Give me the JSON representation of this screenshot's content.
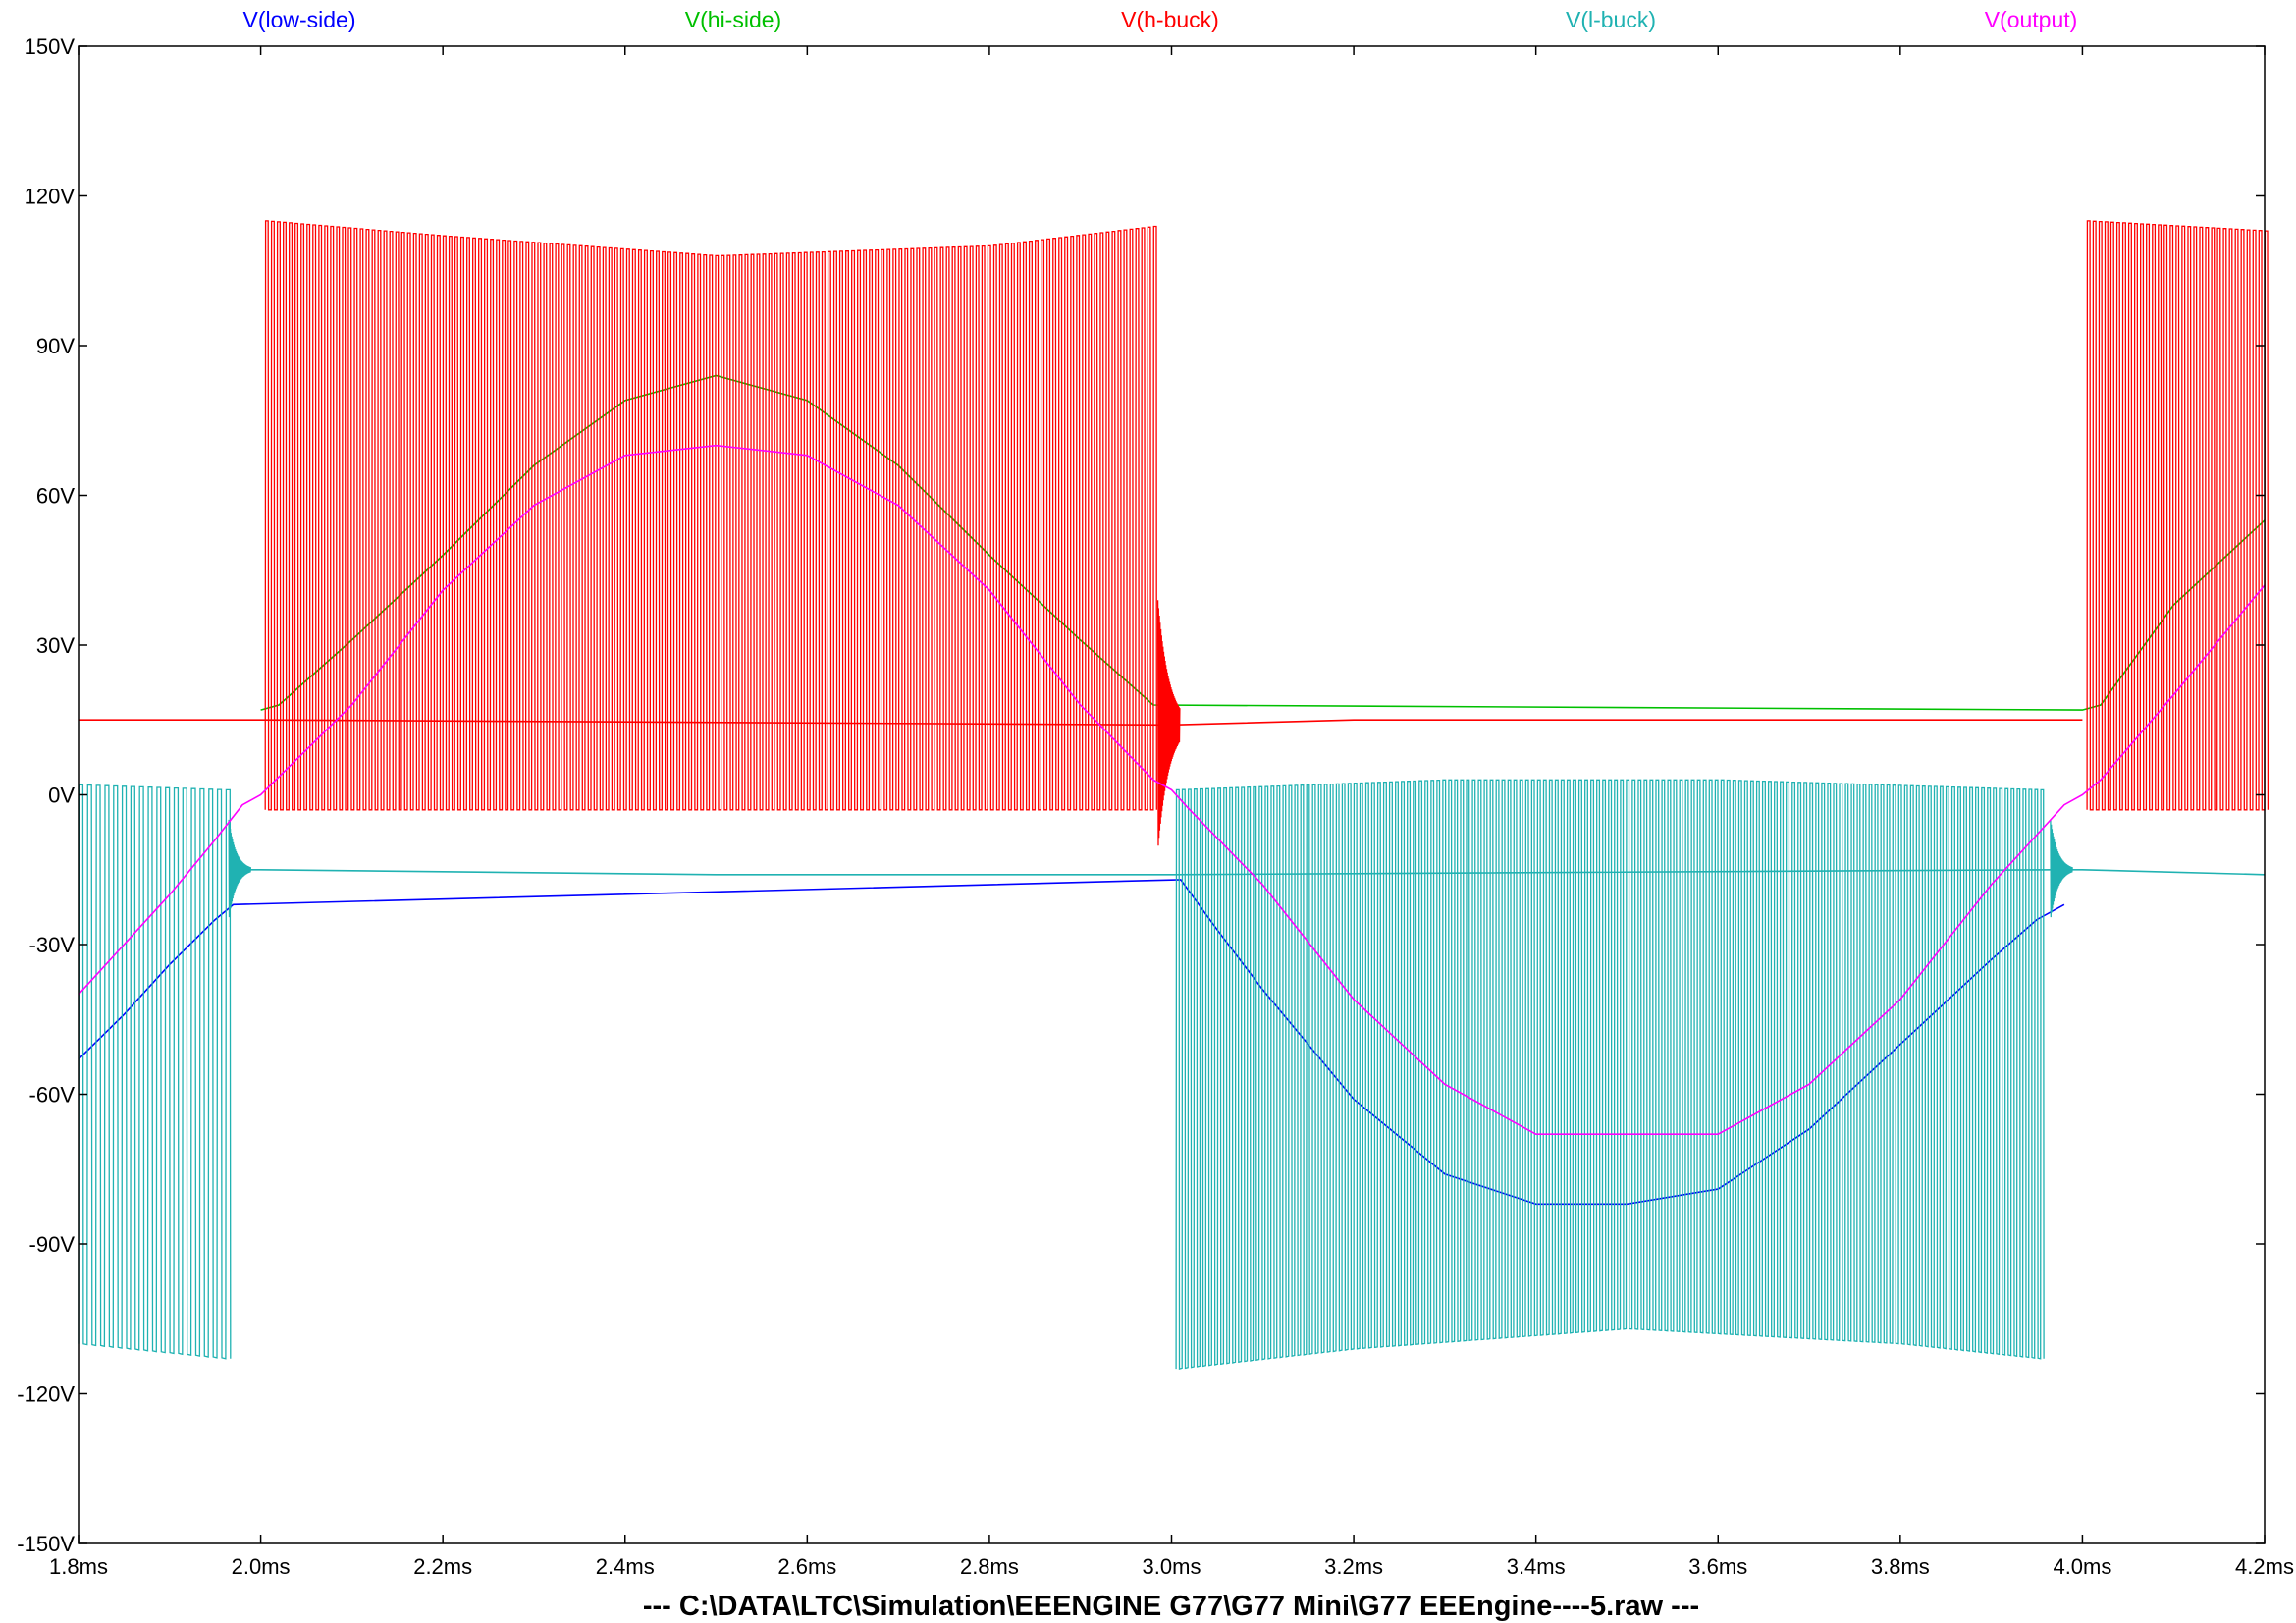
{
  "chart_data": {
    "type": "line",
    "title": "",
    "xlabel": "",
    "ylabel": "",
    "footer": "---  C:\\DATA\\LTC\\Simulation\\EEENGINE G77\\G77 Mini\\G77 EEEngine----5.raw  ---",
    "xlim": [
      1.8,
      4.2
    ],
    "ylim": [
      -150,
      150
    ],
    "x_unit": "ms",
    "y_unit": "V",
    "grid": false,
    "x_ticks": [
      "1.8ms",
      "2.0ms",
      "2.2ms",
      "2.4ms",
      "2.6ms",
      "2.8ms",
      "3.0ms",
      "3.2ms",
      "3.4ms",
      "3.6ms",
      "3.8ms",
      "4.0ms",
      "4.2ms"
    ],
    "y_ticks": [
      "150V",
      "120V",
      "90V",
      "60V",
      "30V",
      "0V",
      "-30V",
      "-60V",
      "-90V",
      "-120V",
      "-150V"
    ],
    "x_tick_values": [
      1.8,
      2.0,
      2.2,
      2.4,
      2.6,
      2.8,
      3.0,
      3.2,
      3.4,
      3.6,
      3.8,
      4.0,
      4.2
    ],
    "y_tick_values": [
      150,
      120,
      90,
      60,
      30,
      0,
      -30,
      -60,
      -90,
      -120,
      -150
    ],
    "series": [
      {
        "name": "V(low-side)",
        "color": "#0000ff",
        "x": [
          1.8,
          1.85,
          1.9,
          1.95,
          1.97,
          3.01,
          3.05,
          3.1,
          3.2,
          3.3,
          3.4,
          3.5,
          3.6,
          3.7,
          3.8,
          3.9,
          3.95,
          3.98
        ],
        "y": [
          -53,
          -44,
          -34,
          -25,
          -22,
          -17,
          -27,
          -39,
          -61,
          -76,
          -82,
          -82,
          -79,
          -67,
          -50,
          -33,
          -25,
          -22
        ]
      },
      {
        "name": "V(hi-side)",
        "color": "#00c000",
        "x": [
          2.0,
          2.02,
          2.1,
          2.2,
          2.3,
          2.4,
          2.5,
          2.6,
          2.7,
          2.8,
          2.9,
          2.98,
          4.0,
          4.02,
          4.1,
          4.2
        ],
        "y": [
          17,
          18,
          31,
          48,
          66,
          79,
          84,
          79,
          66,
          48,
          31,
          18,
          17,
          18,
          38,
          55
        ]
      },
      {
        "name": "V(h-buck)",
        "color": "#ff0000",
        "switching": {
          "x_start": 2.005,
          "x_end": 2.985,
          "period": 0.0065,
          "high": [
            [
              2.005,
              115
            ],
            [
              2.2,
              112
            ],
            [
              2.5,
              108
            ],
            [
              2.8,
              110
            ],
            [
              2.985,
              114
            ]
          ],
          "low": -3
        },
        "switching_2": {
          "x_start": 4.005,
          "x_end": 4.2,
          "period": 0.0065,
          "high": [
            [
              4.005,
              115
            ],
            [
              4.2,
              113
            ]
          ],
          "low": -3
        },
        "ringing": {
          "x": 2.985,
          "amplitude": 25,
          "decay": 0.012
        },
        "x": [
          1.8,
          2.0,
          3.0,
          3.2,
          3.6,
          4.0
        ],
        "y": [
          15,
          15,
          14,
          15,
          15,
          15
        ]
      },
      {
        "name": "V(l-buck)",
        "color": "#20b2b2",
        "switching": {
          "x_start": 1.8,
          "x_end": 1.963,
          "period": 0.0095,
          "high": [
            [
              1.8,
              2
            ],
            [
              1.963,
              1
            ]
          ],
          "low": [
            [
              1.8,
              -110
            ],
            [
              1.963,
              -113
            ]
          ]
        },
        "switching_2": {
          "x_start": 3.005,
          "x_end": 3.955,
          "period": 0.0065,
          "high": [
            [
              3.005,
              1
            ],
            [
              3.3,
              3
            ],
            [
              3.6,
              3
            ],
            [
              3.955,
              1
            ]
          ],
          "low": [
            [
              3.005,
              -115
            ],
            [
              3.2,
              -111
            ],
            [
              3.5,
              -107
            ],
            [
              3.8,
              -110
            ],
            [
              3.955,
              -113
            ]
          ]
        },
        "ringing": [
          {
            "x": 1.965,
            "amplitude": 10,
            "decay": 0.008
          },
          {
            "x": 3.965,
            "amplitude": 10,
            "decay": 0.008
          }
        ],
        "x": [
          1.97,
          2.0,
          2.5,
          3.0,
          3.97,
          4.0,
          4.2
        ],
        "y": [
          -15,
          -15,
          -16,
          -16,
          -15,
          -15,
          -16
        ]
      },
      {
        "name": "V(output)",
        "color": "#ff00ff",
        "x": [
          1.8,
          1.85,
          1.9,
          1.95,
          1.98,
          2.0,
          2.1,
          2.2,
          2.3,
          2.4,
          2.5,
          2.6,
          2.7,
          2.8,
          2.9,
          2.98,
          3.0,
          3.02,
          3.1,
          3.2,
          3.3,
          3.4,
          3.5,
          3.6,
          3.7,
          3.8,
          3.9,
          3.98,
          4.0,
          4.02,
          4.1,
          4.2
        ],
        "y": [
          -40,
          -30,
          -20,
          -9,
          -2,
          0,
          18,
          41,
          58,
          68,
          70,
          68,
          58,
          41,
          18,
          3,
          1,
          -3,
          -18,
          -41,
          -58,
          -68,
          -68,
          -68,
          -58,
          -41,
          -18,
          -2,
          0,
          3,
          20,
          42
        ]
      }
    ]
  }
}
